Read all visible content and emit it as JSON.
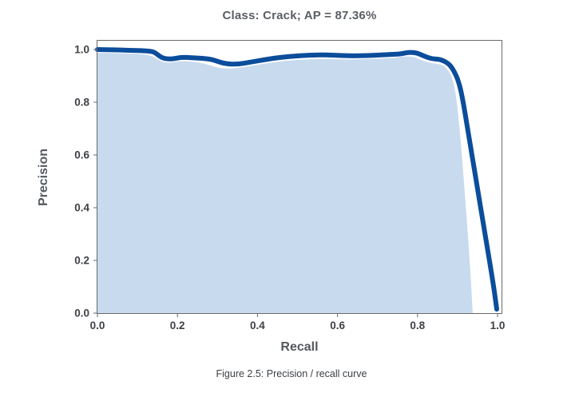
{
  "figure": {
    "title": "Class: Crack; AP = 87.36%",
    "caption": "Figure 2.5: Precision / recall curve"
  },
  "colors": {
    "curve_line": "#0b4d9b",
    "area_fill": "#c8daee",
    "axis_frame": "#696969",
    "title_text": "#5a5e65",
    "tick_text": "#3d4147",
    "axis_label_text": "#54585f",
    "caption_text": "#3c4045",
    "background": "#ffffff"
  },
  "chart_data": {
    "type": "area",
    "title": "Class: Crack; AP = 87.36%",
    "class_name": "Crack",
    "average_precision_percent": 87.36,
    "xlabel": "Recall",
    "ylabel": "Precision",
    "xlim": [
      0,
      1.012
    ],
    "ylim": [
      0,
      1.037
    ],
    "x_ticks": [
      "0.0",
      "0.2",
      "0.4",
      "0.6",
      "0.8",
      "1.0"
    ],
    "y_ticks": [
      "0.0",
      "0.2",
      "0.4",
      "0.6",
      "0.8",
      "1.0"
    ],
    "grid": false,
    "legend": null,
    "series": [
      {
        "name": "precision_recall_curve",
        "kind": "line",
        "color": "#0b4d9b",
        "stroke_width": 6,
        "points": [
          [
            0.0,
            1.0
          ],
          [
            0.04,
            0.999
          ],
          [
            0.08,
            0.997
          ],
          [
            0.12,
            0.995
          ],
          [
            0.14,
            0.992
          ],
          [
            0.15,
            0.981
          ],
          [
            0.162,
            0.968
          ],
          [
            0.178,
            0.964
          ],
          [
            0.195,
            0.966
          ],
          [
            0.21,
            0.971
          ],
          [
            0.235,
            0.969
          ],
          [
            0.262,
            0.967
          ],
          [
            0.285,
            0.963
          ],
          [
            0.3,
            0.955
          ],
          [
            0.32,
            0.946
          ],
          [
            0.35,
            0.944
          ],
          [
            0.382,
            0.952
          ],
          [
            0.42,
            0.962
          ],
          [
            0.46,
            0.971
          ],
          [
            0.5,
            0.976
          ],
          [
            0.54,
            0.979
          ],
          [
            0.572,
            0.98
          ],
          [
            0.61,
            0.977
          ],
          [
            0.648,
            0.976
          ],
          [
            0.69,
            0.978
          ],
          [
            0.73,
            0.981
          ],
          [
            0.758,
            0.983
          ],
          [
            0.778,
            0.99
          ],
          [
            0.798,
            0.988
          ],
          [
            0.815,
            0.976
          ],
          [
            0.835,
            0.965
          ],
          [
            0.855,
            0.963
          ],
          [
            0.87,
            0.954
          ],
          [
            0.882,
            0.94
          ],
          [
            0.892,
            0.916
          ],
          [
            0.902,
            0.882
          ],
          [
            0.912,
            0.822
          ],
          [
            0.93,
            0.655
          ],
          [
            0.95,
            0.47
          ],
          [
            0.972,
            0.27
          ],
          [
            0.99,
            0.105
          ],
          [
            0.998,
            0.015
          ]
        ]
      },
      {
        "name": "area_under_curve",
        "kind": "area",
        "fill_color": "#c8daee",
        "points": [
          [
            0.0,
            0.988
          ],
          [
            0.08,
            0.985
          ],
          [
            0.13,
            0.981
          ],
          [
            0.15,
            0.964
          ],
          [
            0.165,
            0.951
          ],
          [
            0.182,
            0.95
          ],
          [
            0.21,
            0.957
          ],
          [
            0.25,
            0.952
          ],
          [
            0.275,
            0.943
          ],
          [
            0.295,
            0.933
          ],
          [
            0.32,
            0.927
          ],
          [
            0.352,
            0.93
          ],
          [
            0.392,
            0.94
          ],
          [
            0.442,
            0.952
          ],
          [
            0.5,
            0.961
          ],
          [
            0.56,
            0.965
          ],
          [
            0.62,
            0.962
          ],
          [
            0.68,
            0.964
          ],
          [
            0.74,
            0.968
          ],
          [
            0.772,
            0.975
          ],
          [
            0.792,
            0.972
          ],
          [
            0.812,
            0.958
          ],
          [
            0.838,
            0.947
          ],
          [
            0.86,
            0.944
          ],
          [
            0.874,
            0.928
          ],
          [
            0.886,
            0.898
          ],
          [
            0.896,
            0.833
          ],
          [
            0.906,
            0.69
          ],
          [
            0.916,
            0.5
          ],
          [
            0.926,
            0.3
          ],
          [
            0.933,
            0.14
          ],
          [
            0.938,
            0.0
          ]
        ]
      }
    ]
  }
}
